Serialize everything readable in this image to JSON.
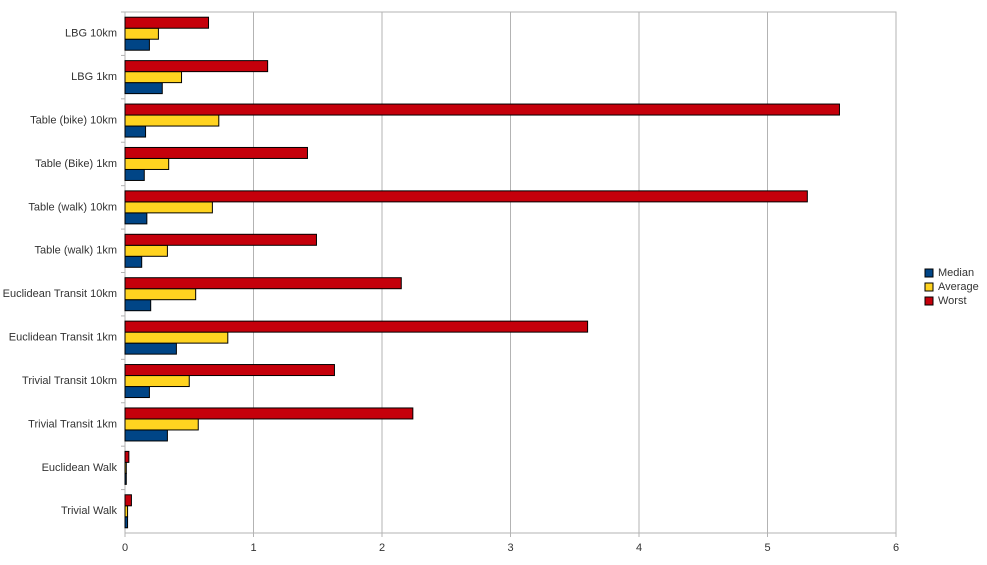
{
  "chart_data": {
    "type": "hbar",
    "categories": [
      "LBG 10km",
      "LBG 1km",
      "Table (bike) 10km",
      "Table (Bike) 1km",
      "Table (walk) 10km",
      "Table (walk) 1km",
      "Euclidean Transit 10km",
      "Euclidean Transit 1km",
      "Trivial Transit 10km",
      "Trivial Transit 1km",
      "Euclidean Walk",
      "Trivial Walk"
    ],
    "series": [
      {
        "name": "Median",
        "color": "#004586",
        "values": [
          0.19,
          0.29,
          0.16,
          0.15,
          0.17,
          0.13,
          0.2,
          0.4,
          0.19,
          0.33,
          0.01,
          0.02
        ]
      },
      {
        "name": "Average",
        "color": "#ffd320",
        "values": [
          0.26,
          0.44,
          0.73,
          0.34,
          0.68,
          0.33,
          0.55,
          0.8,
          0.5,
          0.57,
          0.01,
          0.02
        ]
      },
      {
        "name": "Worst",
        "color": "#c5000b",
        "values": [
          0.65,
          1.11,
          5.56,
          1.42,
          5.31,
          1.49,
          2.15,
          3.6,
          1.63,
          2.24,
          0.03,
          0.05
        ]
      }
    ],
    "xlim": [
      0,
      6
    ],
    "xticks": [
      0,
      1,
      2,
      3,
      4,
      5,
      6
    ],
    "grid": true,
    "legend": "right"
  }
}
